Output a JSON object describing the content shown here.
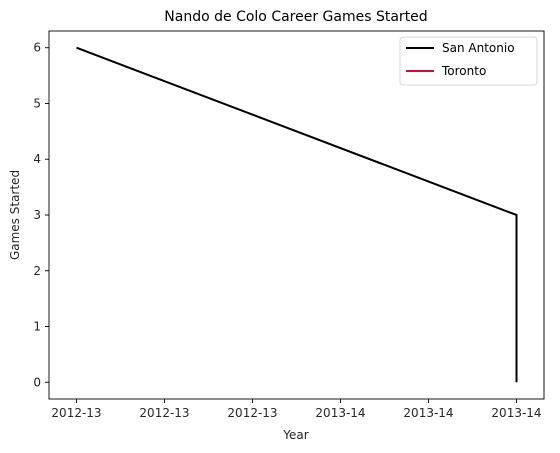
{
  "chart_data": {
    "type": "line",
    "title": "Nando de Colo Career Games Started",
    "xlabel": "Year",
    "ylabel": "Games Started",
    "x_tick_labels": [
      "2012-13",
      "2012-13",
      "2012-13",
      "2013-14",
      "2013-14",
      "2013-14"
    ],
    "x_range": [
      -0.0625,
      1.0625
    ],
    "ylim": [
      -0.3,
      6.3
    ],
    "y_ticks": [
      0,
      1,
      2,
      3,
      4,
      5,
      6
    ],
    "grid": false,
    "legend_position": "top-right",
    "series": [
      {
        "name": "San Antonio",
        "color": "#000000",
        "points": [
          {
            "x": 0,
            "y": 6
          },
          {
            "x": 1,
            "y": 3
          },
          {
            "x": 1,
            "y": 0
          }
        ]
      },
      {
        "name": "Toronto",
        "color": "#c8102e",
        "points": []
      }
    ]
  }
}
